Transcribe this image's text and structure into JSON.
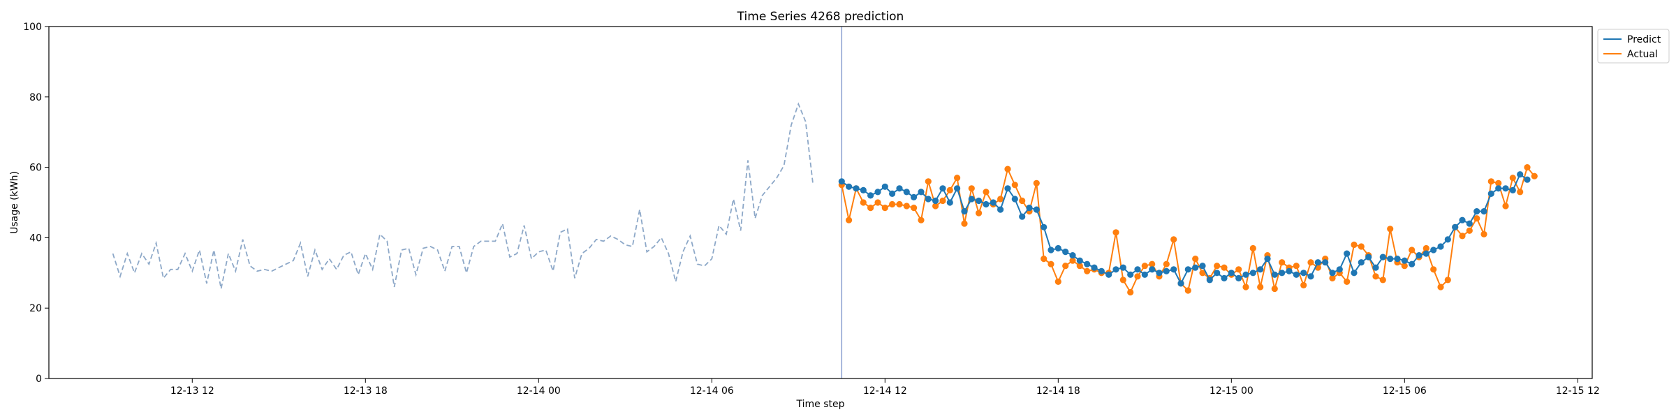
{
  "chart_data": {
    "type": "line",
    "title": "Time Series 4268 prediction",
    "xlabel": "Time step",
    "ylabel": "Usage (kWh)",
    "ylim": [
      0,
      100
    ],
    "yticks": [
      0,
      20,
      40,
      60,
      80,
      100
    ],
    "xlim": [
      "2025-12-13 07:02",
      "2025-12-15 12:30"
    ],
    "xticks": [
      {
        "x": "2025-12-13 12:00",
        "label": "12-13 12"
      },
      {
        "x": "2025-12-13 18:00",
        "label": "12-13 18"
      },
      {
        "x": "2025-12-14 00:00",
        "label": "12-14 00"
      },
      {
        "x": "2025-12-14 06:00",
        "label": "12-14 06"
      },
      {
        "x": "2025-12-14 12:00",
        "label": "12-14 12"
      },
      {
        "x": "2025-12-14 18:00",
        "label": "12-14 18"
      },
      {
        "x": "2025-12-15 00:00",
        "label": "12-15 00"
      },
      {
        "x": "2025-12-15 06:00",
        "label": "12-15 06"
      },
      {
        "x": "2025-12-15 12:00",
        "label": "12-15 12"
      }
    ],
    "grid": false,
    "legend": "outside-top-right",
    "forecast_start": "2025-12-14 10:30",
    "history": {
      "start": "2025-12-13 09:15",
      "interval_minutes": 15,
      "style": "dashed",
      "color": "#8da8c8",
      "values": [
        35.5,
        29,
        35.5,
        30,
        35.5,
        32.5,
        38.5,
        28.5,
        31,
        31,
        35.5,
        30.5,
        36.5,
        27,
        36.5,
        25.5,
        35.5,
        30.5,
        39.5,
        32,
        30.5,
        31,
        30.5,
        31.5,
        32.5,
        33.5,
        38.5,
        29,
        36.5,
        31,
        34,
        31,
        35,
        36,
        29.5,
        35.5,
        31,
        41,
        39,
        26,
        36.5,
        37,
        29.5,
        37,
        37.5,
        36.5,
        30.5,
        37.5,
        37.5,
        30,
        37.5,
        39,
        39,
        39,
        44,
        34.5,
        35.5,
        43.5,
        34,
        36,
        36.5,
        30.5,
        41.5,
        42.5,
        28.5,
        35.5,
        37,
        39.5,
        39,
        40.5,
        39.5,
        38,
        37.5,
        48,
        36,
        37.5,
        40,
        35.5,
        27.5,
        36,
        40.5,
        32.5,
        32,
        34,
        43.5,
        41,
        51,
        42,
        62,
        45.5,
        52,
        54.5,
        57,
        60.5,
        72,
        78,
        73,
        55.5
      ]
    },
    "series": [
      {
        "name": "Predict",
        "color": "#1f77b4",
        "start": "2025-12-14 10:30",
        "interval_minutes": 15,
        "values": [
          56,
          54.5,
          54,
          53.5,
          52,
          53,
          54.5,
          52.5,
          54,
          53,
          51.5,
          53,
          51,
          50.5,
          54,
          50,
          54,
          47.5,
          51,
          50.5,
          49.5,
          50,
          48,
          54,
          51,
          46,
          48.5,
          48,
          43,
          36.5,
          37,
          36,
          35,
          33.5,
          32.5,
          31.5,
          30.5,
          29.5,
          31,
          31.5,
          29.5,
          31,
          29.5,
          31,
          30,
          30.5,
          31,
          27,
          31,
          31.5,
          32,
          28,
          30,
          28.5,
          30,
          28.5,
          29.5,
          30,
          31,
          34,
          29.5,
          30,
          30.5,
          29.5,
          30,
          29,
          33,
          33,
          30,
          31,
          35.5,
          30,
          33,
          34.5,
          31.5,
          34.5,
          34,
          34,
          33.5,
          32.5,
          35,
          35.5,
          36.5,
          37.5,
          39.5,
          43,
          45,
          44,
          47.5,
          47.5,
          52.5,
          54,
          54,
          53.5,
          58,
          56.5
        ]
      },
      {
        "name": "Actual",
        "color": "#ff7f0e",
        "start": "2025-12-14 10:30",
        "interval_minutes": 15,
        "values": [
          55,
          45,
          54,
          50,
          48.5,
          50,
          48.5,
          49.5,
          49.5,
          49,
          48.5,
          45,
          56,
          49,
          50.5,
          53.5,
          57,
          44,
          54,
          47,
          53,
          49.5,
          51,
          59.5,
          55,
          50.5,
          47.5,
          55.5,
          34,
          32.5,
          27.5,
          32,
          33.5,
          32,
          30.5,
          31,
          30,
          30,
          41.5,
          28,
          24.5,
          29,
          32,
          32.5,
          29,
          32.5,
          39.5,
          27,
          25,
          34,
          30,
          28.5,
          32,
          31.5,
          29.5,
          31,
          26,
          37,
          26,
          35,
          25.5,
          33,
          31.5,
          32,
          26.5,
          33,
          31.5,
          34,
          28.5,
          30,
          27.5,
          38,
          37.5,
          35,
          29,
          28,
          42.5,
          33,
          32,
          36.5,
          34.5,
          37,
          31,
          26,
          28,
          43,
          40.5,
          42,
          45.5,
          41,
          56,
          55.5,
          49,
          57,
          53,
          60,
          57.5
        ]
      }
    ]
  }
}
